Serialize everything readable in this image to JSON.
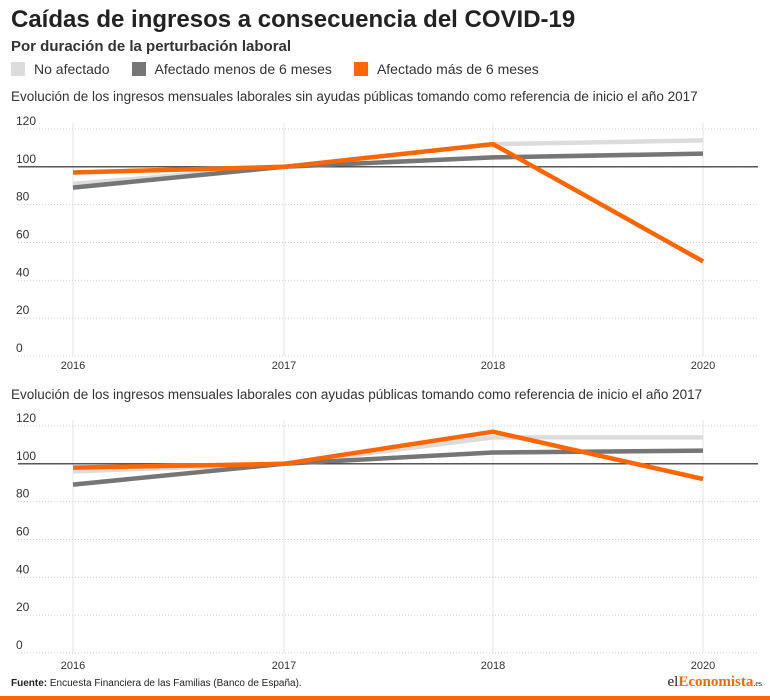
{
  "header": {
    "title": "Caídas de ingresos a consecuencia del COVID-19",
    "subtitle": "Por duración de la perturbación laboral"
  },
  "legend": [
    {
      "label": "No afectado",
      "color": "#dcdcdc"
    },
    {
      "label": "Afectado menos de 6 meses",
      "color": "#767676"
    },
    {
      "label": "Afectado más de 6 meses",
      "color": "#ff6600"
    }
  ],
  "chart_data": [
    {
      "type": "line",
      "title": "Evolución de los ingresos mensuales laborales sin ayudas públicas tomando como referencia de inicio el año 2017",
      "x": [
        "2016",
        "2017",
        "2018",
        "2020"
      ],
      "y_ticks": [
        "0",
        "20",
        "40",
        "60",
        "80",
        "100",
        "120"
      ],
      "ylim": [
        0,
        120
      ],
      "reference_line": 100,
      "grid": true,
      "series": [
        {
          "name": "No afectado",
          "color": "#dcdcdc",
          "values": [
            91,
            100,
            112,
            114
          ]
        },
        {
          "name": "Afectado menos de 6 meses",
          "color": "#767676",
          "values": [
            89,
            100,
            105,
            107
          ]
        },
        {
          "name": "Afectado más de 6 meses",
          "color": "#ff6600",
          "values": [
            97,
            100,
            112,
            50
          ]
        }
      ]
    },
    {
      "type": "line",
      "title": "Evolución de los ingresos mensuales laborales con ayudas públicas tomando como referencia de inicio el año 2017",
      "x": [
        "2016",
        "2017",
        "2018",
        "2020"
      ],
      "y_ticks": [
        "0",
        "20",
        "40",
        "60",
        "80",
        "100",
        "120"
      ],
      "ylim": [
        0,
        120
      ],
      "reference_line": 100,
      "grid": true,
      "series": [
        {
          "name": "No afectado",
          "color": "#dcdcdc",
          "values": [
            96,
            100,
            114,
            114
          ]
        },
        {
          "name": "Afectado menos de 6 meses",
          "color": "#767676",
          "values": [
            89,
            100,
            106,
            107
          ]
        },
        {
          "name": "Afectado más de 6 meses",
          "color": "#ff6600",
          "values": [
            98,
            100,
            117,
            92
          ]
        }
      ]
    }
  ],
  "footer": {
    "source_label": "Fuente:",
    "source_text": "Encuesta Financiera de las Familias (Banco de España).",
    "brand_prefix": "el",
    "brand_main": "Economista",
    "brand_suffix": ".es"
  }
}
